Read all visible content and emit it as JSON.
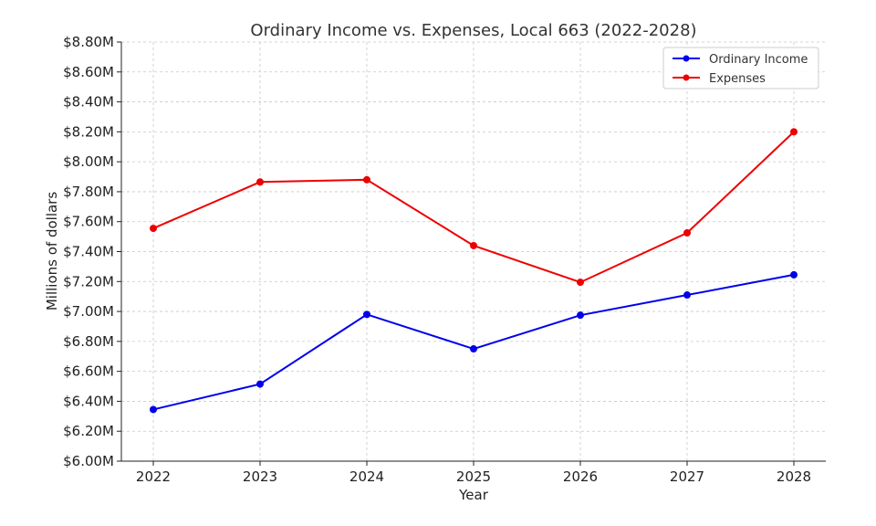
{
  "chart_data": {
    "type": "line",
    "title": "Ordinary Income vs. Expenses, Local 663 (2022-2028)",
    "xlabel": "Year",
    "ylabel": "Millions of dollars",
    "categories": [
      "2022",
      "2023",
      "2024",
      "2025",
      "2026",
      "2027",
      "2028"
    ],
    "ylim": [
      6.0,
      8.8
    ],
    "yticks": [
      6.0,
      6.2,
      6.4,
      6.6,
      6.8,
      7.0,
      7.2,
      7.4,
      7.6,
      7.8,
      8.0,
      8.2,
      8.4,
      8.6,
      8.8
    ],
    "ytick_labels": [
      "$6.00M",
      "$6.20M",
      "$6.40M",
      "$6.60M",
      "$6.80M",
      "$7.00M",
      "$7.20M",
      "$7.40M",
      "$7.60M",
      "$7.80M",
      "$8.00M",
      "$8.20M",
      "$8.40M",
      "$8.60M",
      "$8.80M"
    ],
    "grid": true,
    "legend_position": "top-right",
    "series": [
      {
        "name": "Ordinary Income",
        "color": "#0000ee",
        "values": [
          6.345,
          6.515,
          6.98,
          6.75,
          6.975,
          7.11,
          7.245
        ]
      },
      {
        "name": "Expenses",
        "color": "#ee0000",
        "values": [
          7.555,
          7.865,
          7.88,
          7.44,
          7.195,
          7.525,
          8.2
        ]
      }
    ]
  }
}
